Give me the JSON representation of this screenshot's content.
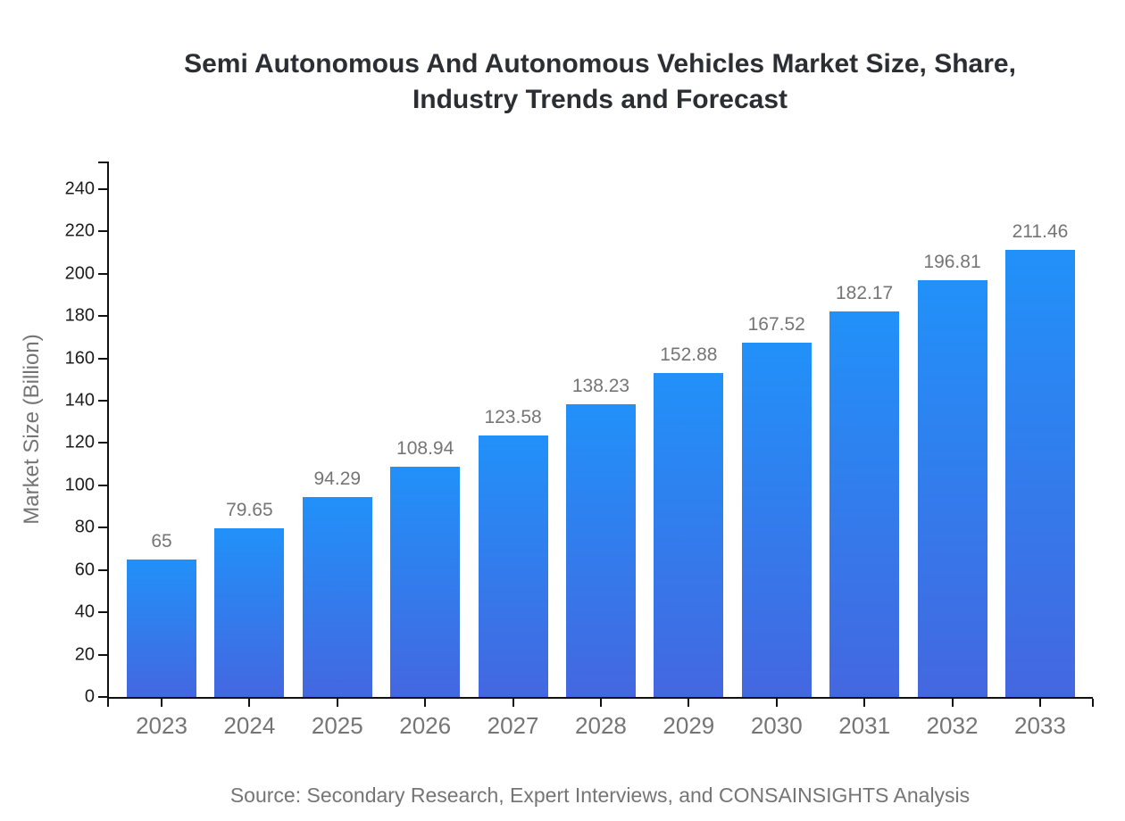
{
  "title": {
    "line1": "Semi Autonomous And Autonomous Vehicles Market Size, Share,",
    "line2": "Industry Trends and Forecast"
  },
  "footer": {
    "source": "Source: Secondary Research, Expert Interviews, and CONSAINSIGHTS Analysis"
  },
  "chart_data": {
    "type": "bar",
    "title": "Semi Autonomous And Autonomous Vehicles Market Size, Share, Industry Trends and Forecast",
    "categories": [
      "2023",
      "2024",
      "2025",
      "2026",
      "2027",
      "2028",
      "2029",
      "2030",
      "2031",
      "2032",
      "2033"
    ],
    "values": [
      65,
      79.65,
      94.29,
      108.94,
      123.58,
      138.23,
      152.88,
      167.52,
      182.17,
      196.81,
      211.46
    ],
    "value_labels": [
      "65",
      "79.65",
      "94.29",
      "108.94",
      "123.58",
      "138.23",
      "152.88",
      "167.52",
      "182.17",
      "196.81",
      "211.46"
    ],
    "xlabel": "",
    "ylabel": "Market Size (Billion)",
    "ylim": [
      0,
      252.6
    ],
    "yticks": [
      0,
      20,
      40,
      60,
      80,
      100,
      120,
      140,
      160,
      180,
      200,
      220,
      240
    ],
    "grid": false,
    "legend_position": "none",
    "colors": {
      "bar_gradient_top": "#2191f9",
      "bar_gradient_bottom": "#4467e0",
      "axis": "#111111",
      "tick_label_dark": "#1c1c1c",
      "muted_text": "#757575",
      "title_text": "#2b2e33"
    }
  }
}
